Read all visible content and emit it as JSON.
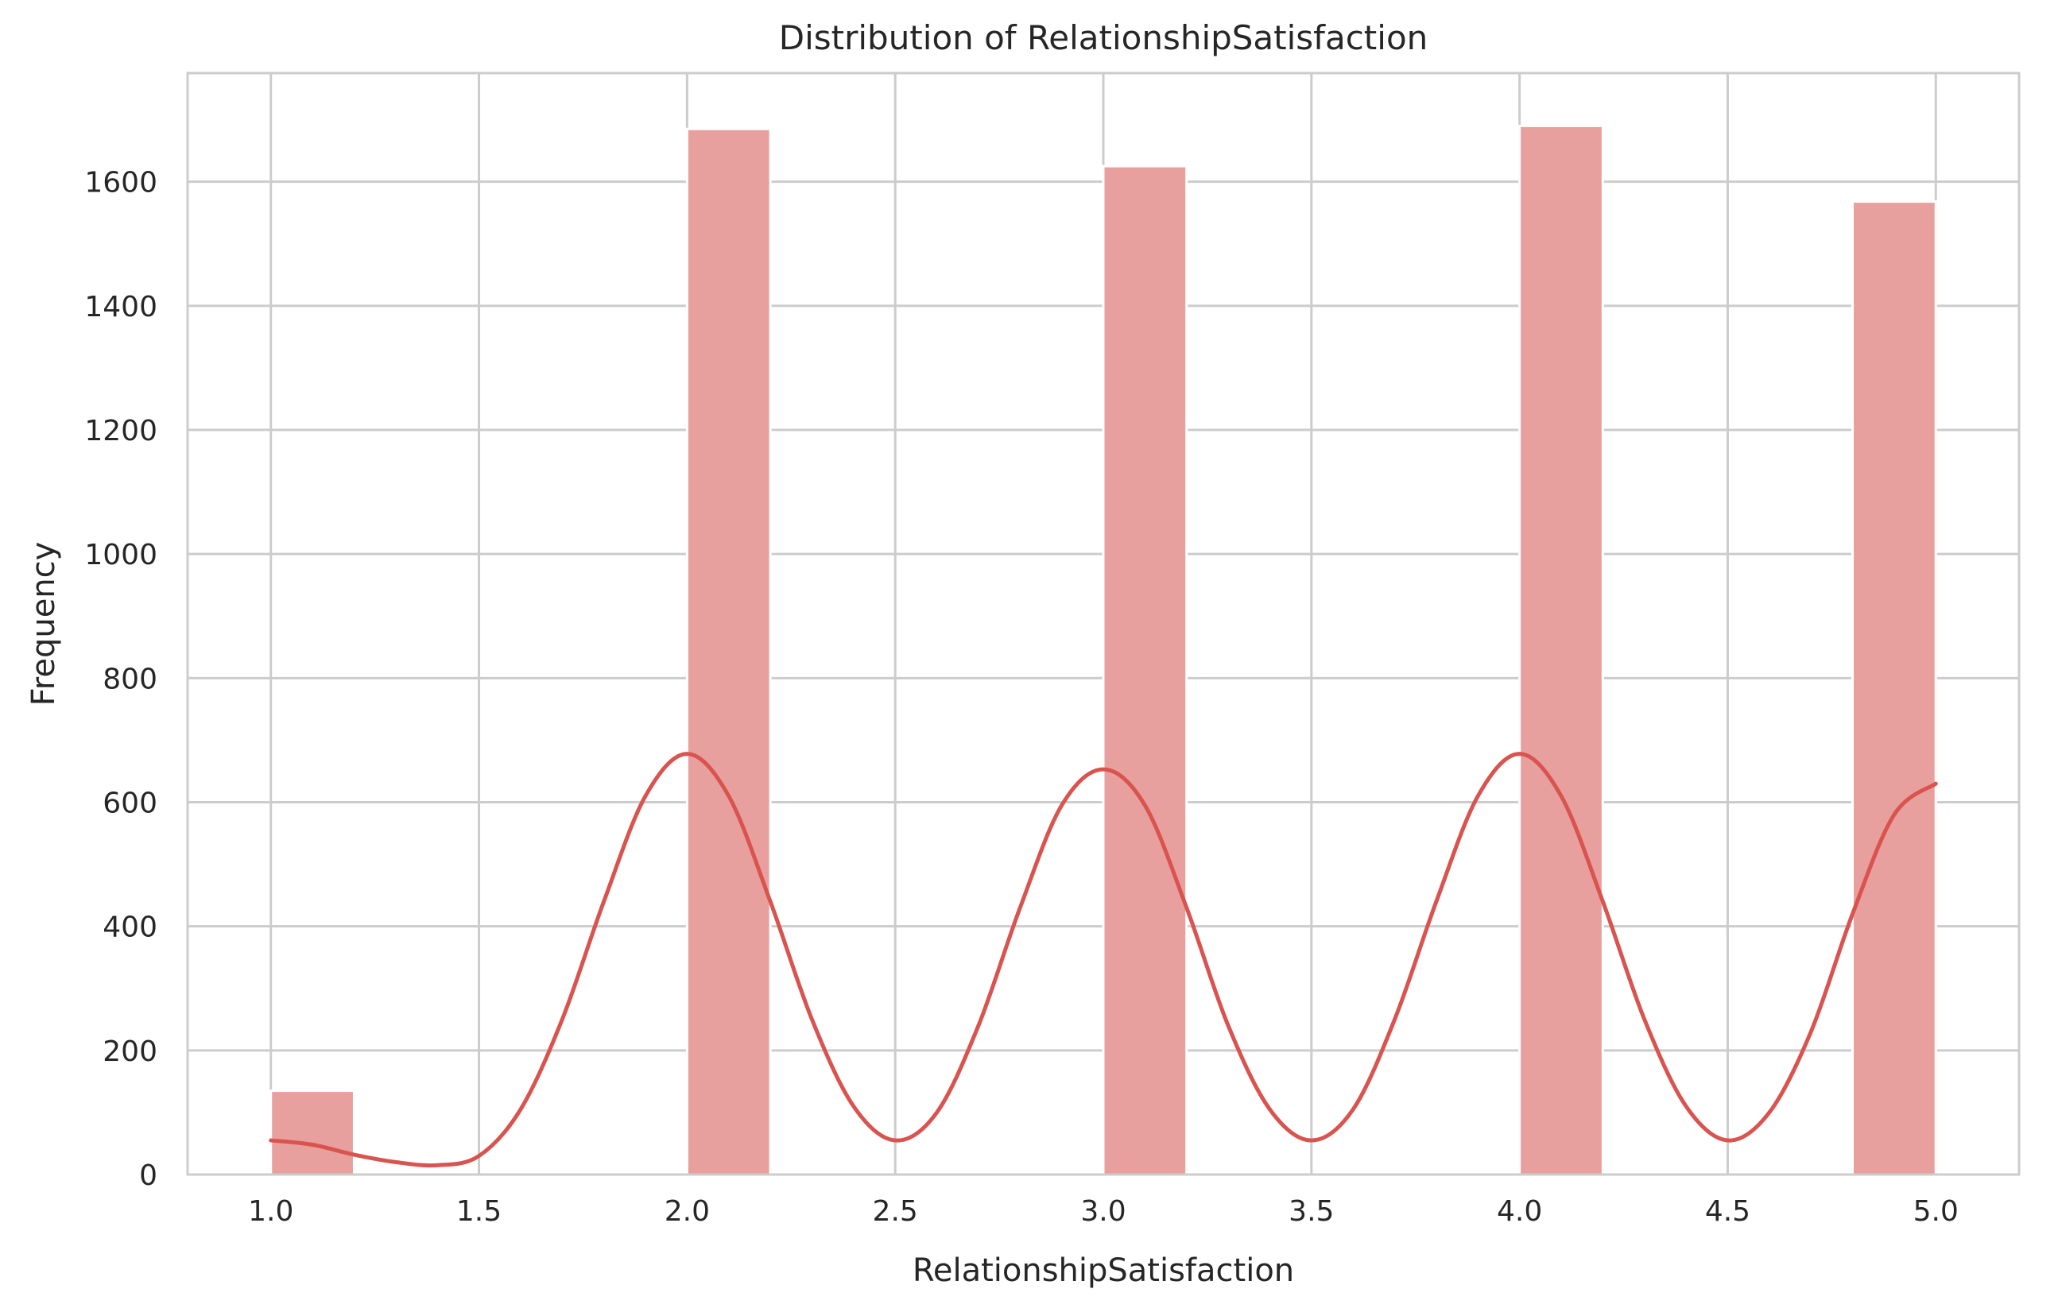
{
  "chart_data": {
    "type": "bar",
    "title": "Distribution of RelationshipSatisfaction",
    "xlabel": "RelationshipSatisfaction",
    "ylabel": "Frequency",
    "xlim": [
      0.8,
      5.2
    ],
    "ylim": [
      0,
      1775
    ],
    "xticks": [
      "1.0",
      "1.5",
      "2.0",
      "2.5",
      "3.0",
      "3.5",
      "4.0",
      "4.5",
      "5.0"
    ],
    "yticks": [
      "0",
      "200",
      "400",
      "600",
      "800",
      "1000",
      "1200",
      "1400",
      "1600"
    ],
    "grid": true,
    "bar_color": "#e8a09e",
    "line_color": "#d9534f",
    "bins": [
      {
        "x0": 1.0,
        "x1": 1.2,
        "count": 135
      },
      {
        "x0": 2.0,
        "x1": 2.2,
        "count": 1685
      },
      {
        "x0": 3.0,
        "x1": 3.2,
        "count": 1625
      },
      {
        "x0": 4.0,
        "x1": 4.2,
        "count": 1690
      },
      {
        "x0": 4.8,
        "x1": 5.0,
        "count": 1568
      }
    ],
    "kde": {
      "x": [
        1.0,
        1.1,
        1.2,
        1.3,
        1.4,
        1.5,
        1.6,
        1.7,
        1.8,
        1.9,
        2.0,
        2.1,
        2.2,
        2.3,
        2.4,
        2.5,
        2.6,
        2.7,
        2.8,
        2.9,
        3.0,
        3.1,
        3.2,
        3.3,
        3.4,
        3.5,
        3.6,
        3.7,
        3.8,
        3.9,
        4.0,
        4.1,
        4.2,
        4.3,
        4.4,
        4.5,
        4.6,
        4.7,
        4.8,
        4.9,
        5.0
      ],
      "y": [
        55,
        48,
        32,
        20,
        15,
        30,
        105,
        250,
        440,
        610,
        678,
        610,
        440,
        250,
        110,
        55,
        100,
        240,
        430,
        595,
        653,
        595,
        430,
        240,
        105,
        55,
        105,
        250,
        440,
        610,
        678,
        610,
        440,
        250,
        110,
        55,
        100,
        230,
        420,
        580,
        630
      ]
    }
  }
}
